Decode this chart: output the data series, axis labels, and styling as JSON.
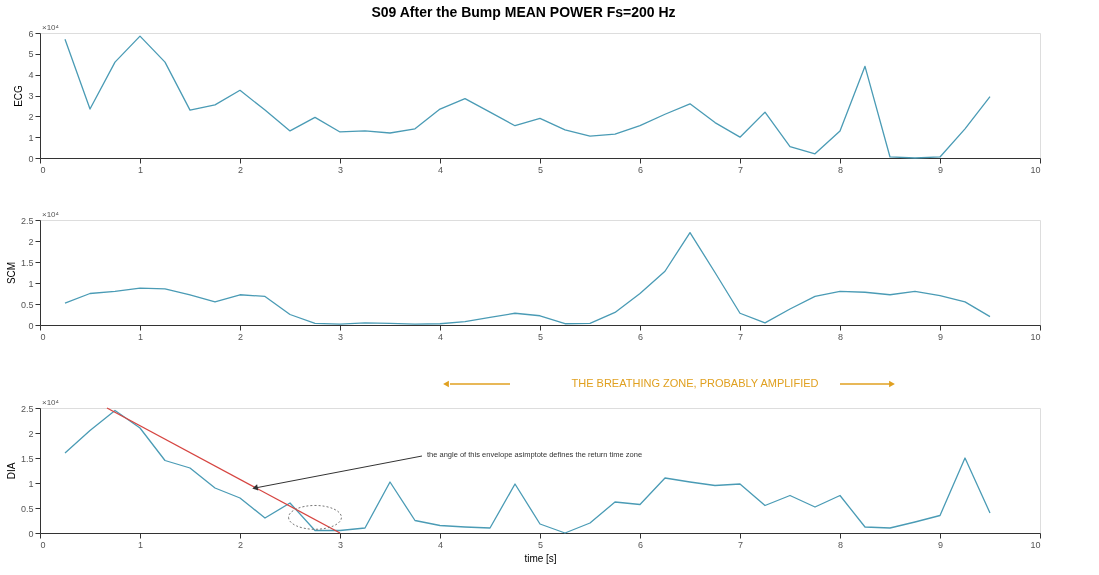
{
  "chart_data": [
    {
      "type": "line",
      "title": "S09 After the Bump   MEAN POWER   Fs=200 Hz",
      "ylabel": "ECG",
      "annotations": [
        "×10⁴"
      ],
      "x": [
        0.25,
        0.5,
        0.75,
        1.0,
        1.25,
        1.5,
        1.75,
        2.0,
        2.25,
        2.5,
        2.75,
        3.0,
        3.25,
        3.5,
        3.75,
        4.0,
        4.25,
        4.5,
        4.75,
        5.0,
        5.25,
        5.5,
        5.75,
        6.0,
        6.25,
        6.5,
        6.75,
        7.0,
        7.25,
        7.5,
        7.75,
        8.0,
        8.25,
        8.5,
        8.75,
        9.0,
        9.25,
        9.5
      ],
      "series": [
        {
          "color": "#4a9bb5",
          "values": [
            5.7,
            2.35,
            4.6,
            5.85,
            4.6,
            2.3,
            2.55,
            3.25,
            2.3,
            1.3,
            1.95,
            1.25,
            1.3,
            1.2,
            1.4,
            2.35,
            2.85,
            2.2,
            1.55,
            1.9,
            1.35,
            1.05,
            1.15,
            1.55,
            2.1,
            2.6,
            1.7,
            1.0,
            2.2,
            0.55,
            0.2,
            1.3,
            4.4,
            0.05,
            0.0,
            0.05,
            1.4,
            2.95
          ]
        }
      ],
      "xlim": [
        0,
        10
      ],
      "xticks": [
        0,
        1,
        2,
        3,
        4,
        5,
        6,
        7,
        8,
        9,
        10
      ],
      "ylim": [
        0,
        6
      ],
      "yticks": [
        0,
        1,
        2,
        3,
        4,
        5,
        6
      ],
      "grid": false,
      "marker": "none",
      "line_style": "solid"
    },
    {
      "type": "line",
      "ylabel": "SCM",
      "annotations": [
        "×10⁴"
      ],
      "x": [
        0.25,
        0.5,
        0.75,
        1.0,
        1.25,
        1.5,
        1.75,
        2.0,
        2.25,
        2.5,
        2.75,
        3.0,
        3.25,
        3.5,
        3.75,
        4.0,
        4.25,
        4.5,
        4.75,
        5.0,
        5.25,
        5.5,
        5.75,
        6.0,
        6.25,
        6.5,
        6.75,
        7.0,
        7.25,
        7.5,
        7.75,
        8.0,
        8.25,
        8.5,
        8.75,
        9.0,
        9.25,
        9.5
      ],
      "series": [
        {
          "color": "#4a9bb5",
          "values": [
            0.52,
            0.75,
            0.8,
            0.88,
            0.86,
            0.72,
            0.55,
            0.72,
            0.68,
            0.25,
            0.04,
            0.02,
            0.05,
            0.04,
            0.02,
            0.03,
            0.08,
            0.18,
            0.28,
            0.22,
            0.03,
            0.04,
            0.3,
            0.75,
            1.28,
            2.2,
            1.25,
            0.28,
            0.05,
            0.38,
            0.68,
            0.8,
            0.78,
            0.72,
            0.8,
            0.7,
            0.55,
            0.2
          ]
        }
      ],
      "xlim": [
        0,
        10
      ],
      "xticks": [
        0,
        1,
        2,
        3,
        4,
        5,
        6,
        7,
        8,
        9,
        10
      ],
      "ylim": [
        0,
        2.5
      ],
      "yticks": [
        0,
        0.5,
        1,
        1.5,
        2,
        2.5
      ],
      "grid": false,
      "marker": "none",
      "line_style": "solid"
    },
    {
      "type": "line",
      "ylabel": "DIA",
      "xlabel": "time [s]",
      "annotations": [
        "×10⁴",
        "THE BREATHING ZONE, PROBABLY AMPLIFIED",
        {
          "text": "the angle of this envelope asimptote defines the return time zone",
          "x": 2.15,
          "y": 0.9
        }
      ],
      "x": [
        0.25,
        0.5,
        0.75,
        1.0,
        1.25,
        1.5,
        1.75,
        2.0,
        2.25,
        2.5,
        2.75,
        3.0,
        3.25,
        3.5,
        3.75,
        4.0,
        4.25,
        4.5,
        4.75,
        5.0,
        5.25,
        5.5,
        5.75,
        6.0,
        6.25,
        6.5,
        6.75,
        7.0,
        7.25,
        7.5,
        7.75,
        8.0,
        8.25,
        8.5,
        8.75,
        9.0,
        9.25,
        9.5
      ],
      "series": [
        {
          "color": "#4a9bb5",
          "values": [
            1.6,
            2.05,
            2.45,
            2.1,
            1.45,
            1.3,
            0.9,
            0.7,
            0.3,
            0.6,
            0.05,
            0.05,
            0.1,
            1.02,
            0.25,
            0.15,
            0.12,
            0.1,
            0.98,
            0.18,
            0.0,
            0.2,
            0.62,
            0.57,
            1.1,
            1.02,
            0.95,
            0.98,
            0.55,
            0.75,
            0.52,
            0.75,
            0.12,
            0.1,
            0.22,
            0.35,
            1.5,
            0.4
          ]
        },
        {
          "type": "line",
          "color": "#d64541",
          "x": [
            0.67,
            3.0
          ],
          "values": [
            2.5,
            0.0
          ]
        }
      ],
      "xlim": [
        0,
        10
      ],
      "xticks": [
        0,
        1,
        2,
        3,
        4,
        5,
        6,
        7,
        8,
        9,
        10
      ],
      "ylim": [
        0,
        2.5
      ],
      "yticks": [
        0,
        0.5,
        1,
        1.5,
        2,
        2.5
      ],
      "grid": false,
      "marker": "none",
      "line_style": "solid"
    }
  ]
}
